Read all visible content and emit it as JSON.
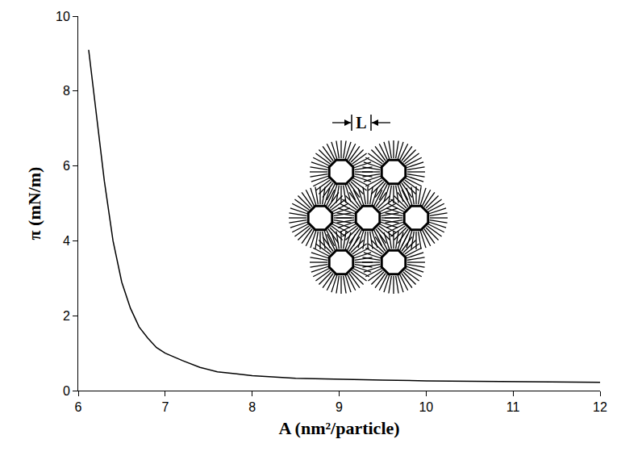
{
  "chart_data": {
    "type": "line",
    "x_label": "A (nm²/particle)",
    "y_label": "π (mN/m)",
    "x": [
      6.12,
      6.2,
      6.3,
      6.4,
      6.5,
      6.6,
      6.7,
      6.8,
      6.9,
      7.0,
      7.2,
      7.4,
      7.6,
      7.8,
      8.0,
      8.5,
      9.0,
      9.5,
      10.0,
      10.5,
      11.0,
      11.5,
      12.0
    ],
    "values": [
      9.1,
      7.6,
      5.6,
      4.0,
      2.9,
      2.2,
      1.7,
      1.4,
      1.15,
      1.0,
      0.8,
      0.62,
      0.5,
      0.45,
      0.4,
      0.33,
      0.3,
      0.28,
      0.26,
      0.25,
      0.24,
      0.23,
      0.22
    ],
    "color": "#000000",
    "xlim": [
      6,
      12
    ],
    "ylim": [
      0,
      10
    ],
    "xticks": [
      6,
      7,
      8,
      9,
      10,
      11,
      12
    ],
    "yticks": [
      0,
      2,
      4,
      6,
      8,
      10
    ],
    "grid": false,
    "annotations": [
      {
        "text": "L"
      }
    ]
  }
}
